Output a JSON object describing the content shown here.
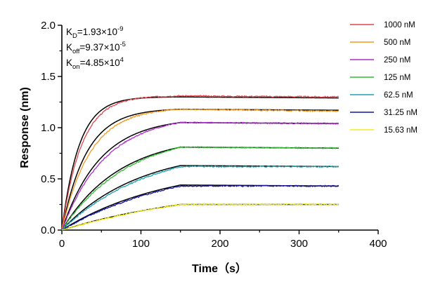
{
  "chart_data": {
    "type": "line",
    "title": "",
    "xlabel": "Time（s）",
    "ylabel": "Response (nm)",
    "xlim": [
      0,
      400
    ],
    "ylim": [
      0,
      2.0
    ],
    "x_ticks": [
      "0",
      "100",
      "200",
      "300",
      "400"
    ],
    "y_ticks": [
      "0.0",
      "0.5",
      "1.0",
      "1.5",
      "2.0"
    ],
    "grid": false,
    "legend_position": "right",
    "association_end_s": 150,
    "experiment_end_s": 350,
    "constants": [
      {
        "symbol": "K",
        "sub": "D",
        "value": "=1.93×10",
        "exp": "-9"
      },
      {
        "symbol": "K",
        "sub": "off",
        "value": "=9.37×10",
        "exp": "-5"
      },
      {
        "symbol": "K",
        "sub": "on",
        "value": "=4.85×10",
        "exp": "4"
      }
    ],
    "series": [
      {
        "name": "1000 nM",
        "color": "#e0474c",
        "plateau": 1.31,
        "end": 1.3
      },
      {
        "name": "500 nM",
        "color": "#f39a1f",
        "plateau": 1.18,
        "end": 1.16
      },
      {
        "name": "250 nM",
        "color": "#b02ad0",
        "plateau": 1.05,
        "end": 1.04
      },
      {
        "name": "125 nM",
        "color": "#2fbf32",
        "plateau": 0.81,
        "end": 0.8
      },
      {
        "name": "62.5 nM",
        "color": "#1fa3b0",
        "plateau": 0.62,
        "end": 0.62
      },
      {
        "name": "31.25 nM",
        "color": "#1414a8",
        "plateau": 0.43,
        "end": 0.43
      },
      {
        "name": "15.63 nM",
        "color": "#f2ec1e",
        "plateau": 0.25,
        "end": 0.25
      }
    ],
    "fit": {
      "color": "#000000",
      "plateaus": [
        1.3,
        1.18,
        1.05,
        0.81,
        0.63,
        0.44,
        0.25
      ],
      "ends": [
        1.29,
        1.17,
        1.04,
        0.8,
        0.62,
        0.43,
        0.25
      ]
    }
  }
}
